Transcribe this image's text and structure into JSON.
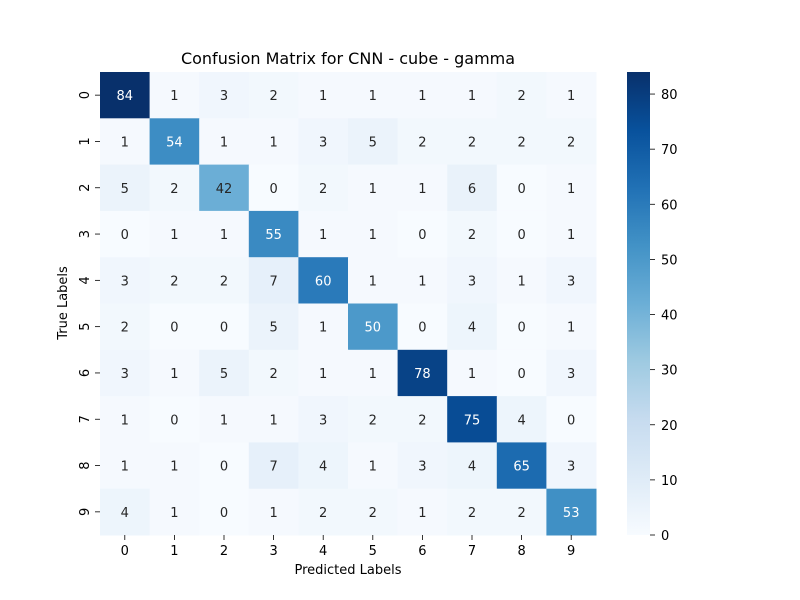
{
  "chart_data": {
    "type": "heatmap",
    "title": "Confusion Matrix for CNN - cube - gamma",
    "xlabel": "Predicted Labels",
    "ylabel": "True Labels",
    "x_categories": [
      "0",
      "1",
      "2",
      "3",
      "4",
      "5",
      "6",
      "7",
      "8",
      "9"
    ],
    "y_categories": [
      "0",
      "1",
      "2",
      "3",
      "4",
      "5",
      "6",
      "7",
      "8",
      "9"
    ],
    "values": [
      [
        84,
        1,
        3,
        2,
        1,
        1,
        1,
        1,
        2,
        1
      ],
      [
        1,
        54,
        1,
        1,
        3,
        5,
        2,
        2,
        2,
        2
      ],
      [
        5,
        2,
        42,
        0,
        2,
        1,
        1,
        6,
        0,
        1
      ],
      [
        0,
        1,
        1,
        55,
        1,
        1,
        0,
        2,
        0,
        1
      ],
      [
        3,
        2,
        2,
        7,
        60,
        1,
        1,
        3,
        1,
        3
      ],
      [
        2,
        0,
        0,
        5,
        1,
        50,
        0,
        4,
        0,
        1
      ],
      [
        3,
        1,
        5,
        2,
        1,
        1,
        78,
        1,
        0,
        3
      ],
      [
        1,
        0,
        1,
        1,
        3,
        2,
        2,
        75,
        4,
        0
      ],
      [
        1,
        1,
        0,
        7,
        4,
        1,
        3,
        4,
        65,
        3
      ],
      [
        4,
        1,
        0,
        1,
        2,
        2,
        1,
        2,
        2,
        53
      ]
    ],
    "colorscale": "Blues",
    "colorbar": {
      "min": 0,
      "max": 84,
      "ticks": [
        0,
        10,
        20,
        30,
        40,
        50,
        60,
        70,
        80
      ]
    },
    "annotations": "cell values shown",
    "grid": false
  }
}
